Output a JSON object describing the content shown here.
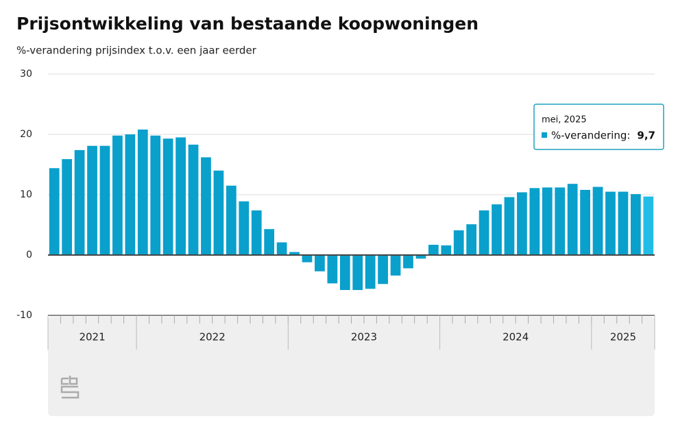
{
  "chart_data": {
    "type": "bar",
    "title": "Prijsontwikkeling van bestaande koopwoningen",
    "subtitle": "%-verandering prijsindex t.o.v. een jaar eerder",
    "categories": [
      null,
      null,
      null,
      null,
      null,
      null,
      null,
      null,
      null,
      null,
      null,
      null,
      null,
      null,
      null,
      null,
      null,
      null,
      null,
      null,
      null,
      null,
      null,
      null,
      null,
      null,
      null,
      null,
      null,
      null,
      null,
      null,
      null,
      null,
      null,
      null,
      null,
      null,
      null,
      null,
      null,
      null,
      null,
      null,
      null,
      null,
      null,
      null
    ],
    "series": [
      {
        "name": "%-verandering",
        "color": "#0aa0cc",
        "highlight_color": "#22bde6",
        "values": [
          14.4,
          15.9,
          17.4,
          18.1,
          18.1,
          19.8,
          20.0,
          20.8,
          19.8,
          19.3,
          19.5,
          18.3,
          16.2,
          14.0,
          11.5,
          8.9,
          7.4,
          4.3,
          2.1,
          0.5,
          -1.2,
          -2.7,
          -4.7,
          -5.8,
          -5.8,
          -5.6,
          -4.8,
          -3.4,
          -2.2,
          -0.6,
          1.7,
          1.6,
          4.1,
          5.1,
          7.4,
          8.4,
          9.6,
          10.4,
          11.1,
          11.2,
          11.2,
          11.8,
          10.8,
          11.3,
          10.5,
          10.5,
          10.1,
          9.7
        ]
      }
    ],
    "year_groups": [
      {
        "label": "2021",
        "months": 7
      },
      {
        "label": "2022",
        "months": 12
      },
      {
        "label": "2023",
        "months": 12
      },
      {
        "label": "2024",
        "months": 12
      },
      {
        "label": "2025",
        "months": 5
      }
    ],
    "ylim": [
      -10,
      30
    ],
    "yticks": [
      -10,
      0,
      10,
      20,
      30
    ],
    "grid": true,
    "tooltip": {
      "title": "mei, 2025",
      "label": "%-verandering:",
      "value_label": "9,7"
    }
  }
}
